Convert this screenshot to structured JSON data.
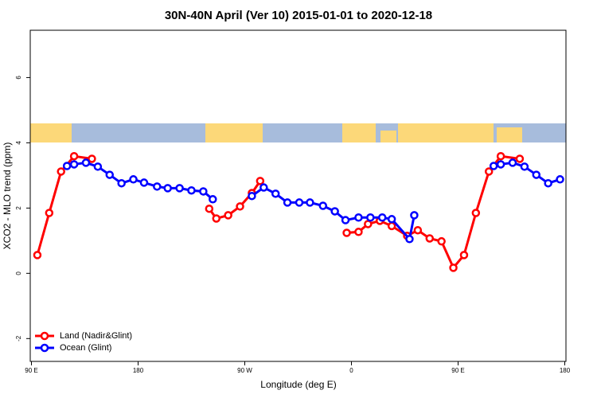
{
  "chart_data": {
    "type": "line",
    "title": "30N-40N April (Ver 10)   2015-01-01 to 2020-12-18",
    "xlabel": "Longitude (deg E)",
    "ylabel": "XCO2 - MLO trend (ppm)",
    "xlim": [
      89,
      541
    ],
    "ylim": [
      -2.7,
      7.45
    ],
    "xticks": [
      {
        "value": 90,
        "label": "90 E"
      },
      180,
      {
        "value": 270,
        "label": "90 W"
      },
      {
        "value": 360,
        "label": "0"
      },
      {
        "value": 450,
        "label": "90 E"
      },
      {
        "value": 540,
        "label": "180"
      }
    ],
    "yticks": [
      -2,
      0,
      2,
      4,
      6
    ],
    "legend": "bottomleft",
    "series": [
      {
        "name": "Land (Nadir&Glint)",
        "color": "#ff0000",
        "x": [
          95,
          105,
          115,
          126,
          141,
          null,
          240,
          246,
          256,
          266,
          276,
          283,
          null,
          356,
          366,
          374,
          384,
          394,
          407,
          416,
          426,
          436,
          446,
          455,
          465,
          476,
          486,
          502
        ],
        "values": [
          0.56,
          1.85,
          3.12,
          3.59,
          3.51,
          null,
          1.98,
          1.68,
          1.78,
          2.05,
          2.46,
          2.83,
          null,
          1.24,
          1.27,
          1.51,
          1.61,
          1.45,
          1.15,
          1.32,
          1.07,
          0.98,
          0.17,
          0.56,
          1.85,
          3.12,
          3.59,
          3.51
        ]
      },
      {
        "name": "Ocean (Glint)",
        "color": "#0000ff",
        "x": [
          120,
          126,
          136,
          146,
          156,
          166,
          176,
          185,
          196,
          205,
          215,
          225,
          235,
          243,
          null,
          276,
          286,
          296,
          306,
          316,
          325,
          336,
          346,
          355,
          366,
          376,
          386,
          394,
          409,
          413,
          null,
          480,
          486,
          496,
          506,
          516,
          526,
          536
        ],
        "values": [
          3.29,
          3.34,
          3.39,
          3.27,
          3.02,
          2.76,
          2.88,
          2.78,
          2.66,
          2.61,
          2.61,
          2.54,
          2.51,
          2.27,
          null,
          2.37,
          2.63,
          2.44,
          2.17,
          2.17,
          2.17,
          2.07,
          1.9,
          1.63,
          1.71,
          1.71,
          1.71,
          1.66,
          1.05,
          1.78,
          null,
          3.29,
          3.34,
          3.39,
          3.27,
          3.02,
          2.76,
          2.88
        ]
      }
    ]
  }
}
